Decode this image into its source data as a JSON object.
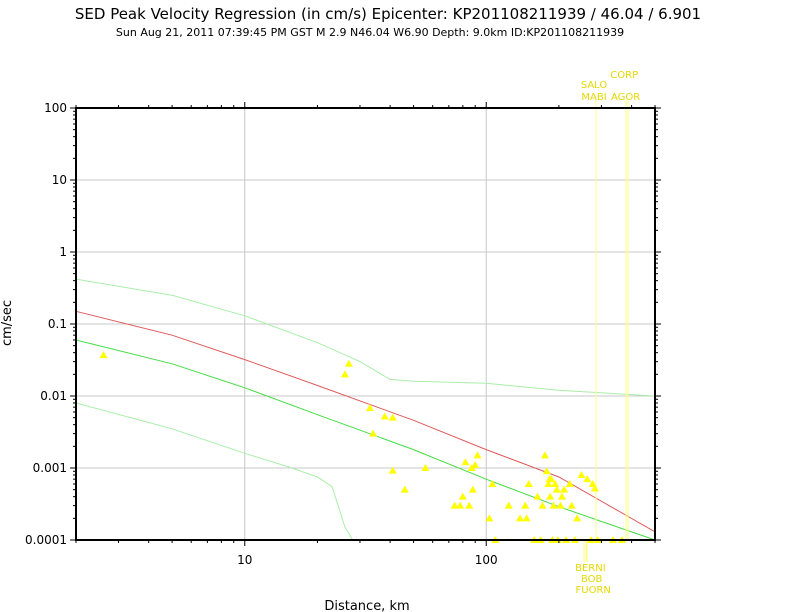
{
  "chart_data": {
    "type": "scatter",
    "title": "SED Peak Velocity Regression (in cm/s) Epicenter: KP201108211939 / 46.04 / 6.901",
    "subtitle": "Sun Aug 21, 2011 07:39:45 PM GST   M 2.9   N46.04 W6.90   Depth: 9.0km   ID:KP201108211939",
    "xlabel": "Distance, km",
    "ylabel": "cm/sec",
    "x_scale": "log",
    "y_scale": "log",
    "xlim": [
      2,
      500
    ],
    "ylim": [
      0.0001,
      100
    ],
    "grid": true,
    "x_tick_labels": [
      {
        "value": 10,
        "label": "10"
      },
      {
        "value": 100,
        "label": "100"
      }
    ],
    "y_tick_labels": [
      {
        "value": 100,
        "label": "100"
      },
      {
        "value": 10,
        "label": "10"
      },
      {
        "value": 1,
        "label": "1"
      },
      {
        "value": 0.1,
        "label": "0.1"
      },
      {
        "value": 0.01,
        "label": "0.01"
      },
      {
        "value": 0.001,
        "label": "0.001"
      },
      {
        "value": 0.0001,
        "label": "0.0001"
      }
    ],
    "colors": {
      "observations": "#ffff00",
      "regression": "#e05a5a",
      "median": "#44dd44",
      "bounds": "#aaeeaa",
      "station_lines": "#ffff88",
      "station_labels": "#e6d800"
    },
    "regression_curve": [
      [
        2,
        0.15
      ],
      [
        5,
        0.07
      ],
      [
        10,
        0.032
      ],
      [
        20,
        0.014
      ],
      [
        50,
        0.0046
      ],
      [
        100,
        0.0018
      ],
      [
        200,
        0.00075
      ],
      [
        500,
        0.00013
      ]
    ],
    "median_curve": [
      [
        2,
        0.06
      ],
      [
        5,
        0.028
      ],
      [
        10,
        0.013
      ],
      [
        20,
        0.0055
      ],
      [
        50,
        0.0018
      ],
      [
        100,
        0.0007
      ],
      [
        200,
        0.00029
      ],
      [
        500,
        0.0001
      ]
    ],
    "upper_bound_curve": [
      [
        2,
        0.42
      ],
      [
        5,
        0.25
      ],
      [
        10,
        0.13
      ],
      [
        20,
        0.055
      ],
      [
        30,
        0.03
      ],
      [
        40,
        0.017
      ],
      [
        50,
        0.016
      ],
      [
        100,
        0.015
      ],
      [
        200,
        0.012
      ],
      [
        500,
        0.01
      ]
    ],
    "lower_bound_curve": [
      [
        2,
        0.008
      ],
      [
        5,
        0.0035
      ],
      [
        10,
        0.0016
      ],
      [
        15,
        0.00105
      ],
      [
        20,
        0.00075
      ],
      [
        23,
        0.00055
      ],
      [
        26,
        0.00015
      ],
      [
        28,
        0.0001
      ]
    ],
    "observations": [
      [
        2.6,
        0.037
      ],
      [
        26,
        0.02
      ],
      [
        27,
        0.028
      ],
      [
        33,
        0.0068
      ],
      [
        34,
        0.003
      ],
      [
        38,
        0.0052
      ],
      [
        41,
        0.005
      ],
      [
        41,
        0.00092
      ],
      [
        46,
        0.0005
      ],
      [
        56,
        0.001
      ],
      [
        74,
        0.0003
      ],
      [
        78,
        0.0003
      ],
      [
        80,
        0.0004
      ],
      [
        82,
        0.0012
      ],
      [
        85,
        0.0003
      ],
      [
        87,
        0.001
      ],
      [
        88,
        0.0005
      ],
      [
        90,
        0.0011
      ],
      [
        92,
        0.0015
      ],
      [
        103,
        0.0002
      ],
      [
        106,
        0.0006
      ],
      [
        109,
        0.0001
      ],
      [
        124,
        0.0003
      ],
      [
        138,
        0.0002
      ],
      [
        145,
        0.0003
      ],
      [
        147,
        0.0002
      ],
      [
        150,
        0.0006
      ],
      [
        158,
        0.0001
      ],
      [
        163,
        0.0004
      ],
      [
        168,
        0.0001
      ],
      [
        171,
        0.0003
      ],
      [
        175,
        0.0015
      ],
      [
        178,
        0.0009
      ],
      [
        181,
        0.0006
      ],
      [
        183,
        0.0007
      ],
      [
        184,
        0.0004
      ],
      [
        186,
        0.0007
      ],
      [
        188,
        0.0001
      ],
      [
        190,
        0.0003
      ],
      [
        193,
        0.0006
      ],
      [
        196,
        0.0005
      ],
      [
        198,
        0.0001
      ],
      [
        203,
        0.0003
      ],
      [
        206,
        0.0004
      ],
      [
        210,
        0.0005
      ],
      [
        214,
        0.0001
      ],
      [
        222,
        0.0006
      ],
      [
        226,
        0.0003
      ],
      [
        233,
        0.0001
      ],
      [
        238,
        0.0002
      ],
      [
        248,
        0.0008
      ],
      [
        262,
        0.0007
      ],
      [
        272,
        0.0001
      ],
      [
        276,
        0.0006
      ],
      [
        282,
        0.00052
      ],
      [
        290,
        0.0001
      ],
      [
        335,
        0.0001
      ],
      [
        365,
        0.0001
      ]
    ],
    "stations_top": [
      {
        "name": "SALO",
        "x": 285
      },
      {
        "name": "MABI",
        "x": 285
      },
      {
        "name": "CORP",
        "x": 380
      },
      {
        "name": "AGOR",
        "x": 385
      }
    ],
    "stations_bottom": [
      {
        "name": "BERNI",
        "x": 255
      },
      {
        "name": "BOB",
        "x": 258
      },
      {
        "name": "FUORN",
        "x": 262
      }
    ]
  }
}
